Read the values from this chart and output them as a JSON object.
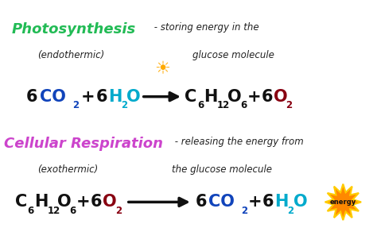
{
  "bg_color": "#ffffff",
  "figsize": [
    4.74,
    3.16
  ],
  "dpi": 100,
  "photo_title": "Photosynthesis",
  "photo_title_color": "#22bb55",
  "photo_sub1": " - storing energy in the",
  "photo_sub2": "(endothermic)",
  "photo_sub3": "glucose molecule",
  "cell_title": "Cellular Respiration",
  "cell_title_color": "#cc44cc",
  "cell_sub1": " - releasing the energy from",
  "cell_sub2": "(exothermic)",
  "cell_sub3": "the glucose molecule",
  "subtitle_color": "#222222",
  "arrow_color": "#111111",
  "colors": {
    "black": "#111111",
    "blue": "#1144bb",
    "dark_red": "#880011",
    "cyan": "#00aacc",
    "purple": "#cc44cc",
    "green": "#22bb55",
    "orange": "#ff8800",
    "yellow": "#ffcc00",
    "gold": "#ffaa00"
  }
}
